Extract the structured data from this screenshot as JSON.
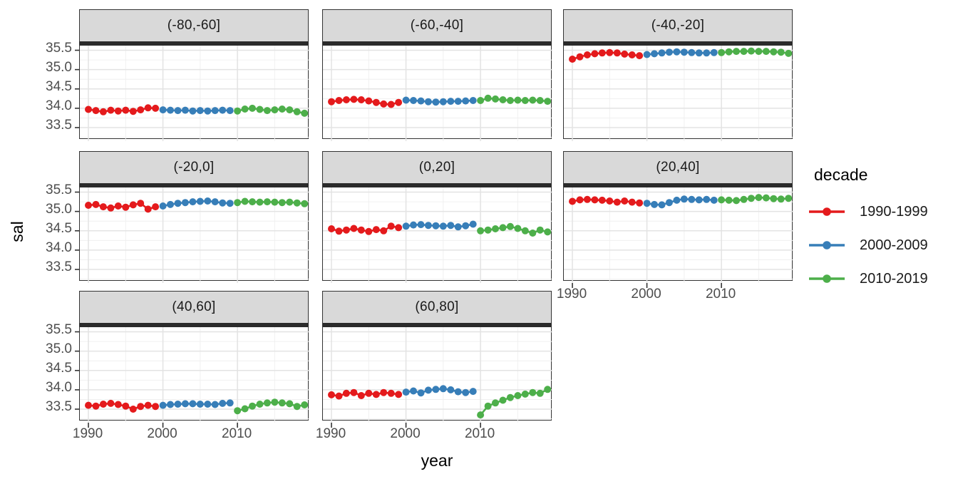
{
  "chart_data": {
    "type": "line",
    "title": "",
    "xlabel": "year",
    "ylabel": "sal",
    "x": {
      "start": 1990,
      "end": 2019,
      "step": 1
    },
    "xticks": [
      1990,
      2000,
      2010
    ],
    "yticks": [
      33.5,
      34.0,
      34.5,
      35.0,
      35.5
    ],
    "xlim": [
      1988.85,
      2019.65
    ],
    "ylim": [
      33.15,
      35.62
    ],
    "grid": {
      "major_x": [
        1990,
        2000,
        2010
      ],
      "minor_x": [
        1995,
        2005,
        2015
      ],
      "major_y": [
        33.5,
        34.0,
        34.5,
        35.0,
        35.5
      ],
      "minor_y": [
        33.25,
        33.75,
        34.25,
        34.75,
        35.25,
        35.75
      ]
    },
    "legend": {
      "title": "decade",
      "position": "right",
      "entries": [
        "1990-1999",
        "2000-2009",
        "2010-2019"
      ]
    },
    "series": [
      {
        "name": "1990-1999",
        "color": "#E41A1C",
        "start_year": 1990
      },
      {
        "name": "2000-2009",
        "color": "#377EB8",
        "start_year": 2000
      },
      {
        "name": "2010-2019",
        "color": "#4DAF4A",
        "start_year": 2010
      }
    ],
    "facets": [
      {
        "label": "(-80,-60]",
        "values": {
          "1990-1999": [
            33.97,
            33.94,
            33.91,
            33.95,
            33.93,
            33.95,
            33.92,
            33.96,
            34.01,
            34.0
          ],
          "2000-2009": [
            33.96,
            33.95,
            33.94,
            33.95,
            33.93,
            33.94,
            33.93,
            33.94,
            33.95,
            33.94
          ],
          "2010-2019": [
            33.93,
            33.98,
            34.0,
            33.97,
            33.94,
            33.96,
            33.98,
            33.96,
            33.91,
            33.87
          ]
        }
      },
      {
        "label": "(-60,-40]",
        "values": {
          "1990-1999": [
            34.17,
            34.2,
            34.22,
            34.23,
            34.22,
            34.19,
            34.15,
            34.11,
            34.1,
            34.15
          ],
          "2000-2009": [
            34.21,
            34.2,
            34.19,
            34.17,
            34.16,
            34.17,
            34.18,
            34.18,
            34.19,
            34.2
          ],
          "2010-2019": [
            34.2,
            34.26,
            34.24,
            34.22,
            34.2,
            34.21,
            34.2,
            34.21,
            34.2,
            34.18
          ]
        }
      },
      {
        "label": "(-40,-20]",
        "values": {
          "1990-1999": [
            35.27,
            35.33,
            35.38,
            35.41,
            35.43,
            35.44,
            35.43,
            35.4,
            35.38,
            35.36
          ],
          "2000-2009": [
            35.39,
            35.41,
            35.43,
            35.45,
            35.46,
            35.45,
            35.44,
            35.43,
            35.43,
            35.44
          ],
          "2010-2019": [
            35.44,
            35.46,
            35.47,
            35.47,
            35.48,
            35.47,
            35.47,
            35.46,
            35.45,
            35.42
          ]
        }
      },
      {
        "label": "(-20,0]",
        "values": {
          "1990-1999": [
            35.16,
            35.18,
            35.12,
            35.09,
            35.14,
            35.11,
            35.17,
            35.21,
            35.06,
            35.12
          ],
          "2000-2009": [
            35.14,
            35.18,
            35.21,
            35.23,
            35.25,
            35.26,
            35.27,
            35.25,
            35.22,
            35.21
          ],
          "2010-2019": [
            35.23,
            35.26,
            35.25,
            35.24,
            35.25,
            35.24,
            35.23,
            35.24,
            35.22,
            35.2
          ]
        }
      },
      {
        "label": "(0,20]",
        "values": {
          "1990-1999": [
            34.55,
            34.49,
            34.52,
            34.56,
            34.52,
            34.48,
            34.53,
            34.5,
            34.62,
            34.58
          ],
          "2000-2009": [
            34.62,
            34.65,
            34.66,
            34.64,
            34.63,
            34.62,
            34.64,
            34.6,
            34.63,
            34.67
          ],
          "2010-2019": [
            34.5,
            34.52,
            34.55,
            34.58,
            34.61,
            34.56,
            34.5,
            34.44,
            34.52,
            34.47
          ]
        }
      },
      {
        "label": "(20,40]",
        "values": {
          "1990-1999": [
            35.26,
            35.3,
            35.31,
            35.3,
            35.29,
            35.27,
            35.24,
            35.27,
            35.24,
            35.22
          ],
          "2000-2009": [
            35.21,
            35.18,
            35.17,
            35.23,
            35.29,
            35.32,
            35.31,
            35.3,
            35.31,
            35.29
          ],
          "2010-2019": [
            35.3,
            35.29,
            35.28,
            35.31,
            35.34,
            35.36,
            35.35,
            35.33,
            35.32,
            35.34
          ]
        }
      },
      {
        "label": "(40,60]",
        "values": {
          "1990-1999": [
            33.6,
            33.58,
            33.63,
            33.65,
            33.62,
            33.58,
            33.5,
            33.57,
            33.6,
            33.57
          ],
          "2000-2009": [
            33.6,
            33.62,
            33.63,
            33.64,
            33.64,
            33.63,
            33.63,
            33.62,
            33.65,
            33.66
          ],
          "2010-2019": [
            33.46,
            33.51,
            33.58,
            33.63,
            33.66,
            33.68,
            33.66,
            33.64,
            33.57,
            33.61
          ]
        }
      },
      {
        "label": "(60,80]",
        "values": {
          "1990-1999": [
            33.87,
            33.84,
            33.91,
            33.93,
            33.85,
            33.91,
            33.88,
            33.93,
            33.91,
            33.88
          ],
          "2000-2009": [
            33.94,
            33.97,
            33.92,
            33.99,
            34.01,
            34.03,
            34.0,
            33.95,
            33.93,
            33.96
          ],
          "2010-2019": [
            33.35,
            33.58,
            33.66,
            33.73,
            33.8,
            33.85,
            33.89,
            33.93,
            33.91,
            34.01
          ]
        }
      }
    ],
    "style": {
      "strip_fill": "#d9d9d9",
      "panel_border": "#333333",
      "grid_major": "#e3e3e3",
      "grid_minor": "#f0f0f0",
      "tick_color": "#333333",
      "tick_label_color": "#4d4d4d"
    }
  }
}
